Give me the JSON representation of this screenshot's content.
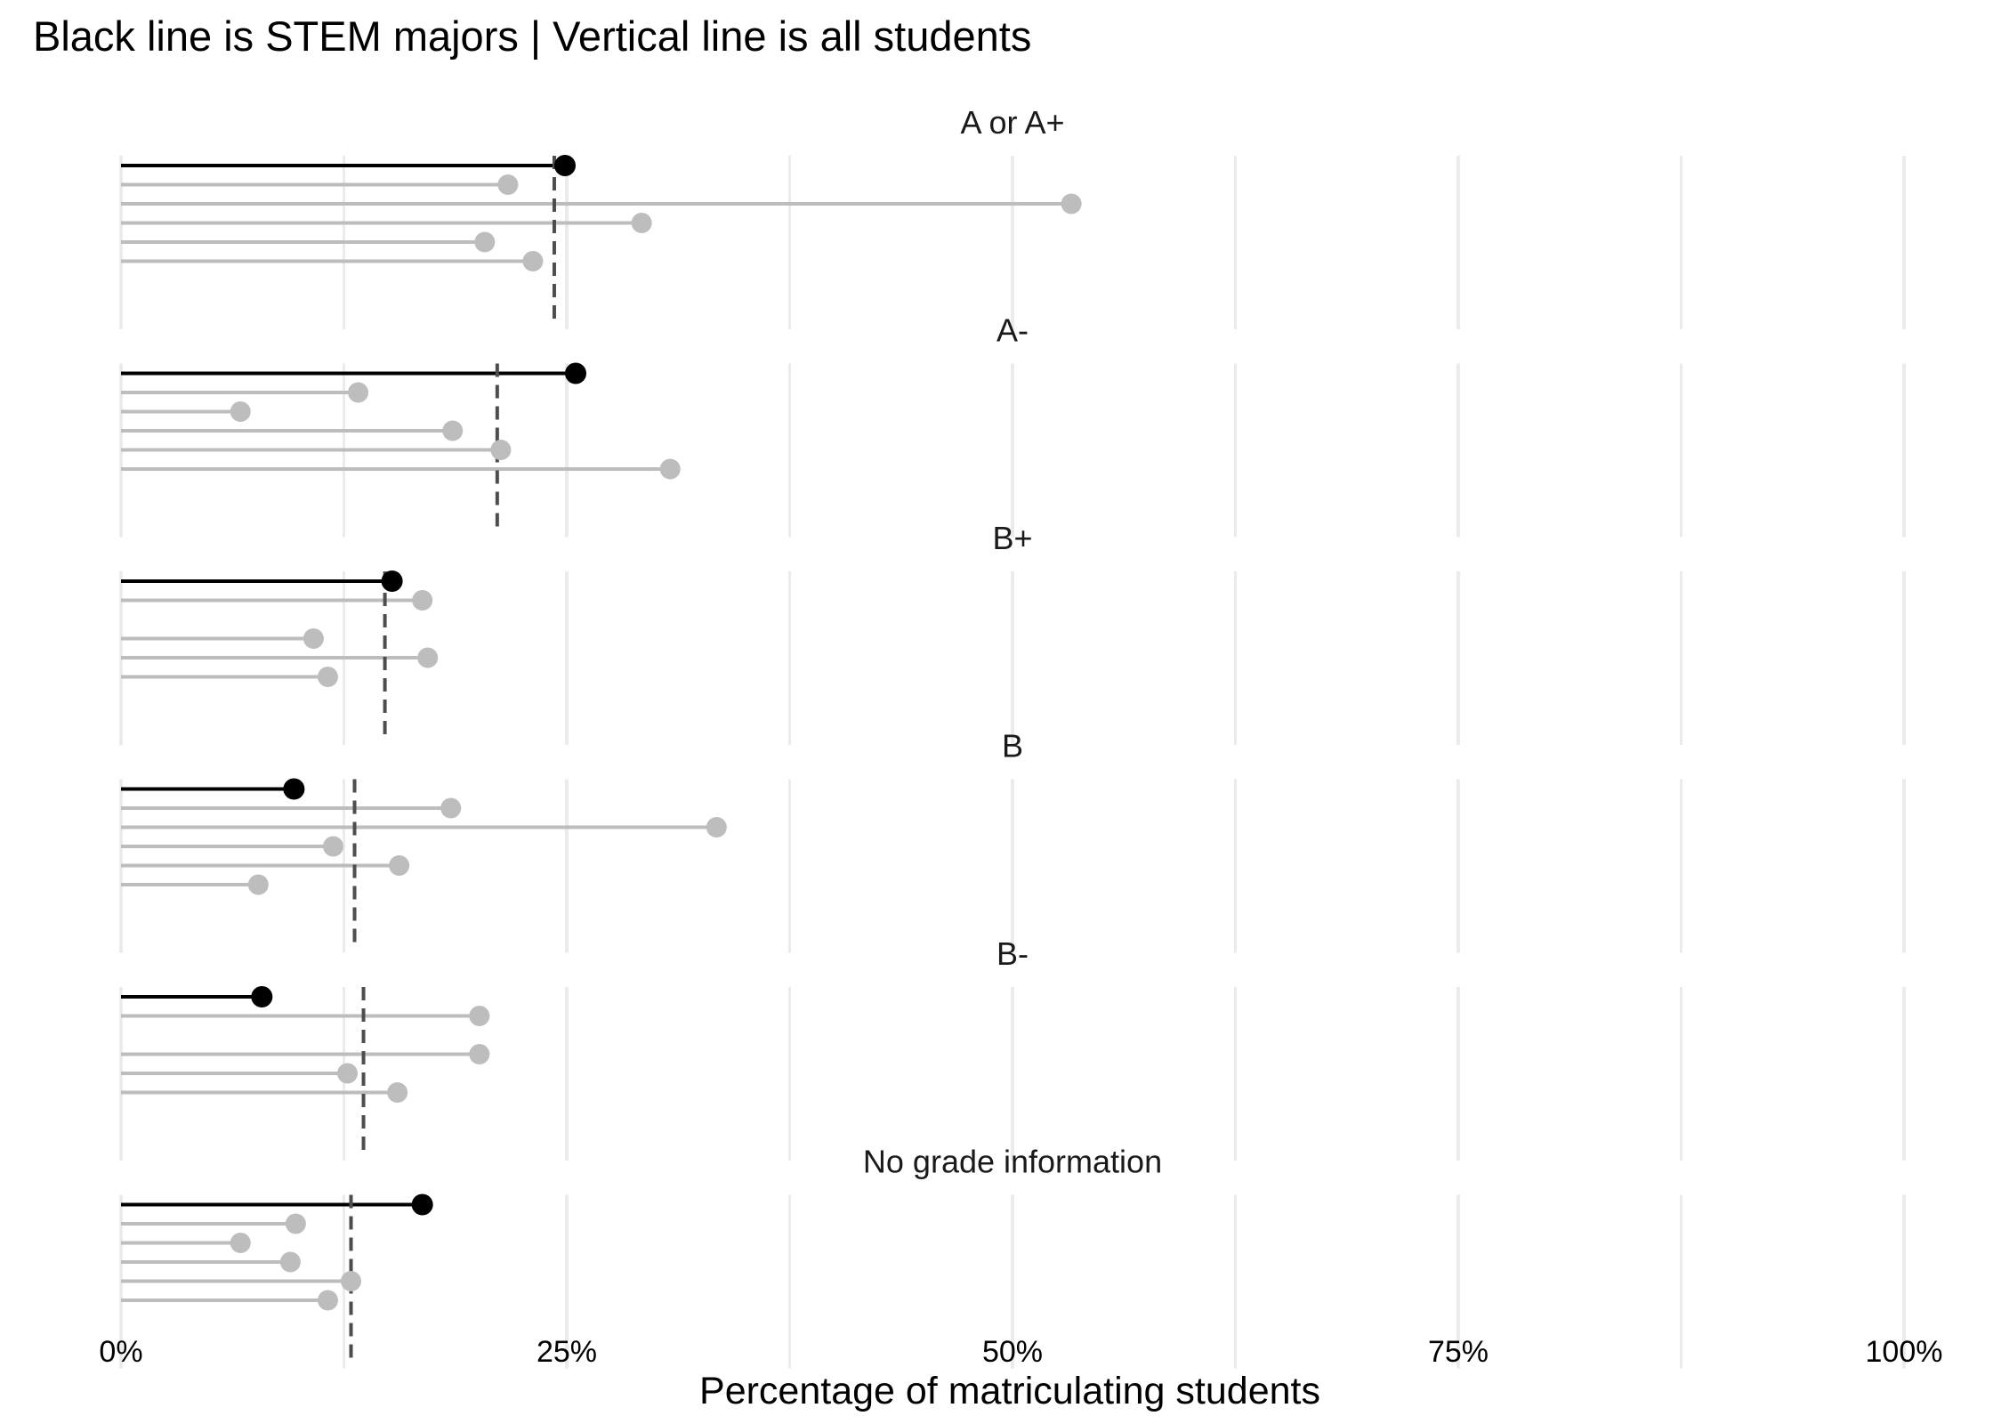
{
  "chart_data": {
    "type": "lollipop",
    "title": "Black line is STEM majors | Vertical line is all students",
    "xlabel": "Percentage of matriculating students",
    "xlim": [
      0,
      100
    ],
    "x_ticks": [
      "0%",
      "25%",
      "50%",
      "75%",
      "100%"
    ],
    "x_tick_values": [
      0,
      25,
      50,
      75,
      100
    ],
    "grid": true,
    "colors": {
      "stem": "#000000",
      "other": "#bdbdbd",
      "reference": "#4d4d4d",
      "grid": "#ebebeb"
    },
    "panels": [
      {
        "label": "A or A+",
        "all_students": 24.3,
        "values": [
          24.9,
          21.7,
          53.3,
          29.2,
          20.4,
          23.1
        ]
      },
      {
        "label": "A-",
        "all_students": 21.1,
        "values": [
          25.5,
          13.3,
          6.7,
          18.6,
          21.3,
          30.8
        ]
      },
      {
        "label": "B+",
        "all_students": 14.8,
        "values": [
          15.2,
          16.9,
          null,
          10.8,
          17.2,
          11.6
        ]
      },
      {
        "label": "B",
        "all_students": 13.1,
        "values": [
          9.7,
          18.5,
          33.4,
          11.9,
          15.6,
          7.7
        ]
      },
      {
        "label": "B-",
        "all_students": 13.6,
        "values": [
          7.9,
          20.1,
          null,
          20.1,
          12.7,
          15.5
        ]
      },
      {
        "label": "No grade information",
        "all_students": 12.9,
        "values": [
          16.9,
          9.8,
          6.7,
          9.5,
          12.9,
          11.6
        ]
      }
    ]
  }
}
